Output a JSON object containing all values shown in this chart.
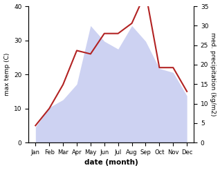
{
  "months": [
    "Jan",
    "Feb",
    "Mar",
    "Apr",
    "May",
    "Jun",
    "Jul",
    "Aug",
    "Sep",
    "Oct",
    "Nov",
    "Dec"
  ],
  "month_positions": [
    1,
    2,
    3,
    4,
    5,
    6,
    7,
    8,
    9,
    10,
    11,
    12
  ],
  "max_temp": [
    5,
    10,
    17,
    27,
    26,
    32,
    32,
    35,
    44,
    22,
    22,
    15
  ],
  "precipitation": [
    4,
    9,
    11,
    15,
    30,
    26,
    24,
    30,
    26,
    19,
    18,
    12
  ],
  "temp_color": "#b22222",
  "precip_color_fill": "#c5caf0",
  "background_color": "#ffffff",
  "ylabel_left": "max temp (C)",
  "ylabel_right": "med. precipitation (kg/m2)",
  "xlabel": "date (month)",
  "ylim_left": [
    0,
    40
  ],
  "ylim_right": [
    0,
    35
  ],
  "yticks_left": [
    0,
    10,
    20,
    30,
    40
  ],
  "yticks_right": [
    0,
    5,
    10,
    15,
    20,
    25,
    30,
    35
  ]
}
